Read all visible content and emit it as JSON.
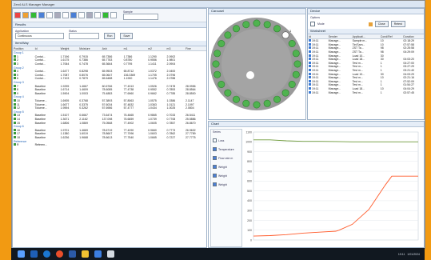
{
  "window": {
    "title": "Zen4 ALS Manager Manager",
    "sample_label": "Sample"
  },
  "colors": {
    "accent": "#1a5fb4",
    "frame": "#f29a12",
    "chart_green": "#6f9a3a",
    "chart_red": "#ff5a2a"
  },
  "results": {
    "title": "Results",
    "application_label": "Application",
    "application_value": "Continuous",
    "status_label": "Status",
    "run_button": "Run",
    "save_button": "Save",
    "list_title": "Item/Way",
    "columns": [
      "Position",
      "Id",
      "Weight",
      "Moisture",
      "Ash",
      "m1",
      "m2",
      "m3",
      "Fine"
    ],
    "groups": [
      {
        "name": "Group 1",
        "rows": [
          [
            "1",
            "Contai...",
            "1.7196",
            "0.7915",
            "65.7386",
            "1.7386",
            "1.1290",
            "2.0902"
          ],
          [
            "2",
            "Contai...",
            "1.6175",
            "0.7386",
            "65.7783",
            "0.8780",
            "0.9556",
            "1.9801"
          ],
          [
            "3",
            "Contai...",
            "1.7064",
            "0.7478",
            "65.3664",
            "0.7795",
            "1.1411",
            "2.0904"
          ]
        ]
      },
      {
        "name": "Group 2",
        "rows": [
          [
            "4",
            "Contai...",
            "1.6477",
            "0.8298",
            "65.9503",
            "65.8712",
            "1.0372",
            "2.0400"
          ],
          [
            "5",
            "Contai...",
            "1.7087",
            "0.8076",
            "65.0647",
            "136.3369",
            "1.1705",
            "2.0796"
          ],
          [
            "6",
            "Contai...",
            "1.7103",
            "0.7879",
            "65.6488",
            "1.1900",
            "1.1476",
            "2.0788"
          ]
        ]
      },
      {
        "name": "Group 3",
        "rows": [
          [
            "7",
            "Baseline",
            "1.9295",
            "1.4667",
            "60.6766",
            "77.4313",
            "1.0526",
            "0.7478",
            "28.9956"
          ],
          [
            "8",
            "Baseline",
            "1.6714",
            "1.4609",
            "78.6085",
            "77.4738",
            "0.9552",
            "0.7853",
            "28.8564"
          ],
          [
            "9",
            "Baseline",
            "1.5904",
            "1.0003",
            "75.4883",
            "77.6960",
            "0.9662",
            "0.7785",
            "28.8500"
          ]
        ]
      },
      {
        "name": "Group 4",
        "rows": [
          [
            "10",
            "Toluene...",
            "1.6905",
            "0.3768",
            "57.3893",
            "57.8063",
            "1.0575",
            "1.0386",
            "2.1147"
          ],
          [
            "11",
            "Toluene...",
            "1.6677",
            "0.3375",
            "57.6034",
            "57.4832",
            "1.0363",
            "1.0121",
            "2.1097"
          ],
          [
            "12",
            "Toluene...",
            "1.9594",
            "0.3262",
            "57.6986",
            "57.4777",
            "1.0434",
            "1.0025",
            "2.0804"
          ]
        ]
      },
      {
        "name": "Group 5",
        "rows": [
          [
            "13",
            "Baseline",
            "1.5107",
            "0.6667",
            "73.6474",
            "76.4665",
            "0.9865",
            "0.7033",
            "26.5411"
          ],
          [
            "14",
            "Baseline",
            "1.3671",
            "2.1162",
            "137.098",
            "76.6659",
            "1.0739",
            "0.7708",
            "25.5886"
          ],
          [
            "15",
            "Baseline",
            "1.6806",
            "1.0869",
            "75.0568",
            "77.4902",
            "1.0605",
            "0.7857",
            "26.8670"
          ]
        ]
      },
      {
        "name": "Group 6",
        "rows": [
          [
            "16",
            "Baseline",
            "1.9701",
            "1.4669",
            "78.6719",
            "77.4290",
            "0.9660",
            "0.7773",
            "26.9632"
          ],
          [
            "17",
            "Baseline",
            "1.1380",
            "1.6019",
            "78.8667",
            "77.7096",
            "1.0603",
            "0.7862",
            "27.7789"
          ],
          [
            "18",
            "Baseline",
            "1.6236",
            "1.9668",
            "78.6613",
            "77.7540",
            "1.0665",
            "0.7227",
            "27.7775"
          ]
        ]
      },
      {
        "name": "Reference",
        "rows": [
          [
            "R",
            "Referen...",
            "",
            "",
            "",
            "",
            "",
            "",
            ""
          ]
        ]
      }
    ]
  },
  "carousel": {
    "title": "Carousel",
    "center_label": "1"
  },
  "device": {
    "title": "Device",
    "options_label": "Options",
    "mode_label": "Mode",
    "close_button": "Close",
    "retest_button": "Retest",
    "log_title": "Worksheet",
    "log_columns": [
      "Id",
      "Sender",
      "Applicati...",
      "Cond/Ref",
      "Duration"
    ],
    "log_rows": [
      [
        "19:11",
        "Manage...",
        "Sample m...",
        "10",
        "02:18:29"
      ],
      [
        "19:11",
        "Manage...",
        "Tin/Sam...",
        "10",
        "07:57:58"
      ],
      [
        "19:11",
        "Manage...",
        "ZST Ta...",
        "98",
        "02:25:58"
      ],
      [
        "19:11",
        "Manage...",
        "ZST Ta...",
        "98",
        "04:29:09"
      ],
      [
        "19:11",
        "Manage...",
        "Load 10...",
        "30",
        ""
      ],
      [
        "19:11",
        "Manage...",
        "Load 18...",
        "30",
        "04:03:20"
      ],
      [
        "19:11",
        "Manage...",
        "Test m...",
        "1",
        "04:27:00"
      ],
      [
        "19:11",
        "Manage...",
        "Test m...",
        "1",
        "03:27:29"
      ],
      [
        "19:11",
        "Manage...",
        "Test m...",
        "1",
        "03:21:40"
      ],
      [
        "19:11",
        "Manage...",
        "Load 10...",
        "30",
        "04:03:29"
      ],
      [
        "19:11",
        "Manage...",
        "Test m...",
        "10",
        "02:21:16"
      ],
      [
        "19:11",
        "Manage...",
        "Test m...",
        "1",
        "07:52:09"
      ],
      [
        "19:11",
        "Manage...",
        "Test m...",
        "1",
        "01:54:27"
      ],
      [
        "19:11",
        "Manage...",
        "Load 18...",
        "10",
        "04:04:29"
      ],
      [
        "19:11",
        "Manage...",
        "Test m...",
        "1",
        "02:57:45"
      ]
    ]
  },
  "graph": {
    "title": "Chart",
    "legend_title": "Series",
    "legend_items": [
      "Loss",
      "Temperature",
      "Flow rate m",
      "Weight",
      "Weight",
      "Weight"
    ]
  },
  "chart_data": {
    "type": "line",
    "ylim": [
      0,
      1100
    ],
    "yticks": [
      0,
      100,
      200,
      300,
      400,
      500,
      600,
      700,
      800,
      900,
      1000,
      1100
    ],
    "series": [
      {
        "x": [
          0,
          0.1,
          0.2,
          0.3,
          0.4,
          0.5,
          0.6,
          0.7,
          0.8,
          0.9,
          1.0
        ],
        "values": [
          1020,
          1020,
          1010,
          1005,
          1005,
          1003,
          1000,
          1000,
          1000,
          1000,
          1000
        ]
      },
      {
        "x": [
          0,
          0.1,
          0.2,
          0.3,
          0.4,
          0.5,
          0.52,
          0.6,
          0.7,
          0.8,
          0.84,
          0.92,
          0.96,
          1.0
        ],
        "values": [
          40,
          45,
          55,
          70,
          80,
          90,
          100,
          160,
          310,
          560,
          650,
          650,
          650,
          650
        ]
      }
    ]
  },
  "taskbar": {
    "time": "19:11",
    "date": "1/01/2024"
  }
}
